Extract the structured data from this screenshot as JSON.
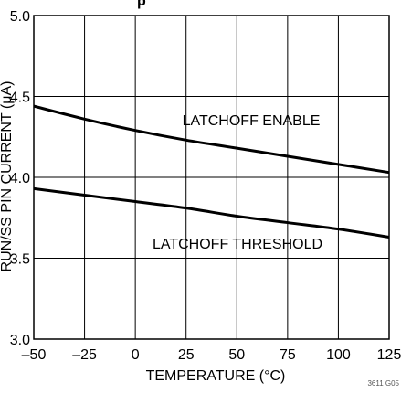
{
  "chart_data": {
    "type": "line",
    "title_fragment": "p",
    "xlabel": "TEMPERATURE (°C)",
    "ylabel": "RUN/SS PIN CURRENT (μA)",
    "xlim": [
      -50,
      125
    ],
    "ylim": [
      3.0,
      5.0
    ],
    "xticks": [
      "–50",
      "–25",
      "0",
      "25",
      "50",
      "75",
      "100",
      "125"
    ],
    "yticks": [
      "3.0",
      "3.5",
      "4.0",
      "4.5",
      "5.0"
    ],
    "grid": true,
    "legend": "none",
    "series": [
      {
        "name": "LATCHOFF ENABLE",
        "x": [
          -50,
          -25,
          0,
          25,
          50,
          75,
          100,
          125
        ],
        "y": [
          4.44,
          4.36,
          4.29,
          4.23,
          4.18,
          4.13,
          4.08,
          4.03
        ]
      },
      {
        "name": "LATCHOFF THRESHOLD",
        "x": [
          -50,
          -25,
          0,
          25,
          50,
          75,
          100,
          125
        ],
        "y": [
          3.93,
          3.89,
          3.85,
          3.81,
          3.76,
          3.72,
          3.68,
          3.63
        ]
      }
    ],
    "corner_code": "3611 G05",
    "color": "#000000"
  }
}
